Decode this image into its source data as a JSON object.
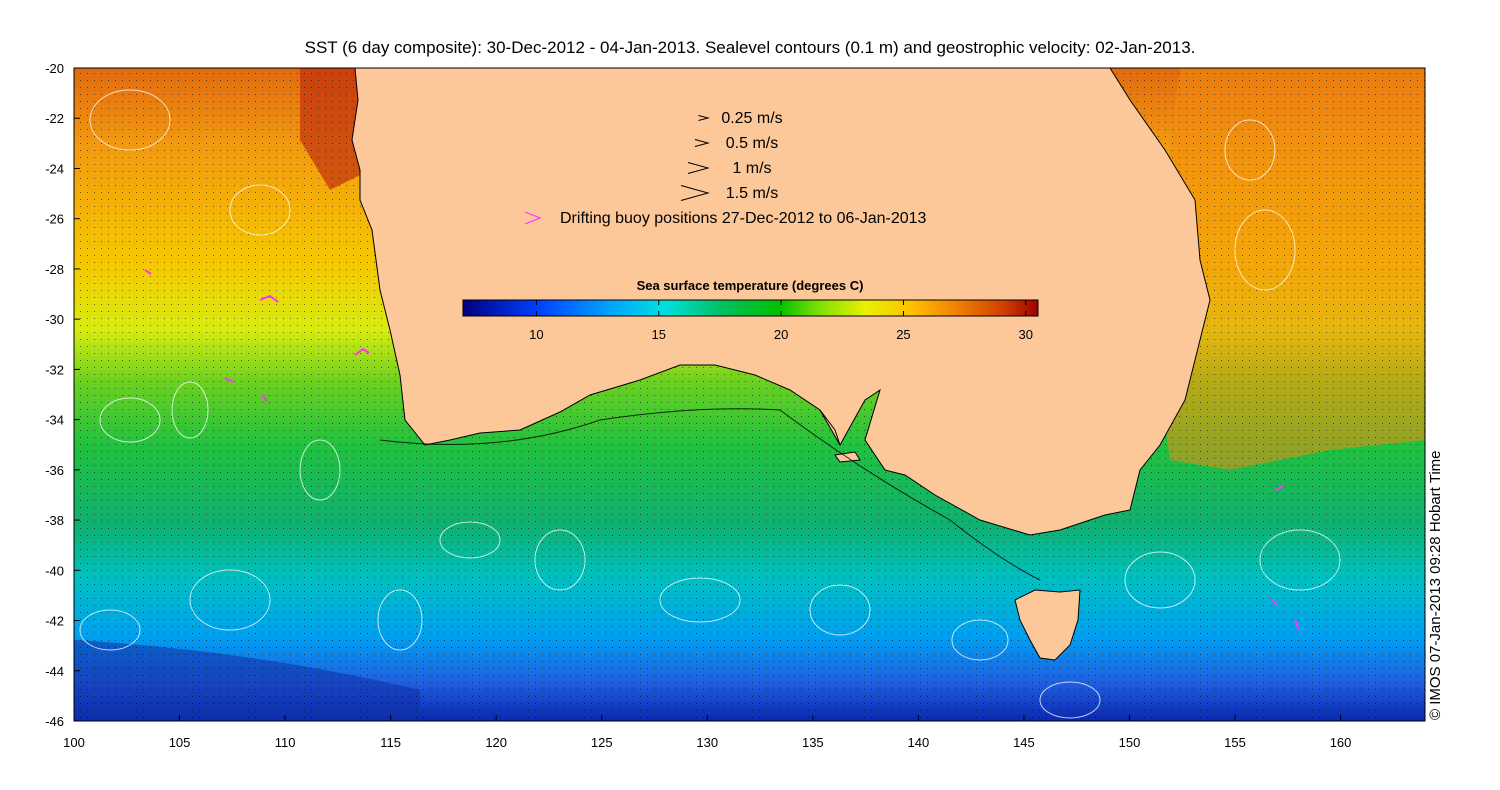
{
  "title": "SST (6 day composite): 30-Dec-2012 - 04-Jan-2013. Sealevel contours (0.1 m) and geostrophic velocity: 02-Jan-2013.",
  "credit": "© IMOS 07-Jan-2013 09:28 Hobart Time",
  "map": {
    "lon_range": [
      100,
      164
    ],
    "lat_range": [
      -46,
      -20
    ],
    "lon_ticks": [
      100,
      105,
      110,
      115,
      120,
      125,
      130,
      135,
      140,
      145,
      150,
      155,
      160
    ],
    "lat_ticks": [
      -20,
      -22,
      -24,
      -26,
      -28,
      -30,
      -32,
      -34,
      -36,
      -38,
      -40,
      -42,
      -44,
      -46
    ],
    "land_color": "#fcc89a",
    "coast_color": "#000000"
  },
  "velocity_legend": [
    {
      "label": "0.25 m/s",
      "speed": 0.25
    },
    {
      "label": "0.5 m/s",
      "speed": 0.5
    },
    {
      "label": "1 m/s",
      "speed": 1
    },
    {
      "label": "1.5 m/s",
      "speed": 1.5
    }
  ],
  "buoy_legend": {
    "label": "Drifting buoy positions 27-Dec-2012 to 06-Jan-2013",
    "color": "#ff33ff"
  },
  "colorbar": {
    "title": "Sea surface temperature (degrees C)",
    "range": [
      7,
      30.5
    ],
    "ticks": [
      10,
      15,
      20,
      25,
      30
    ],
    "colors": [
      "#00007f",
      "#0040ff",
      "#00a0ff",
      "#00e0e0",
      "#00c060",
      "#00c000",
      "#80e000",
      "#e8f000",
      "#ffc000",
      "#f08000",
      "#d04000",
      "#a00000"
    ]
  }
}
